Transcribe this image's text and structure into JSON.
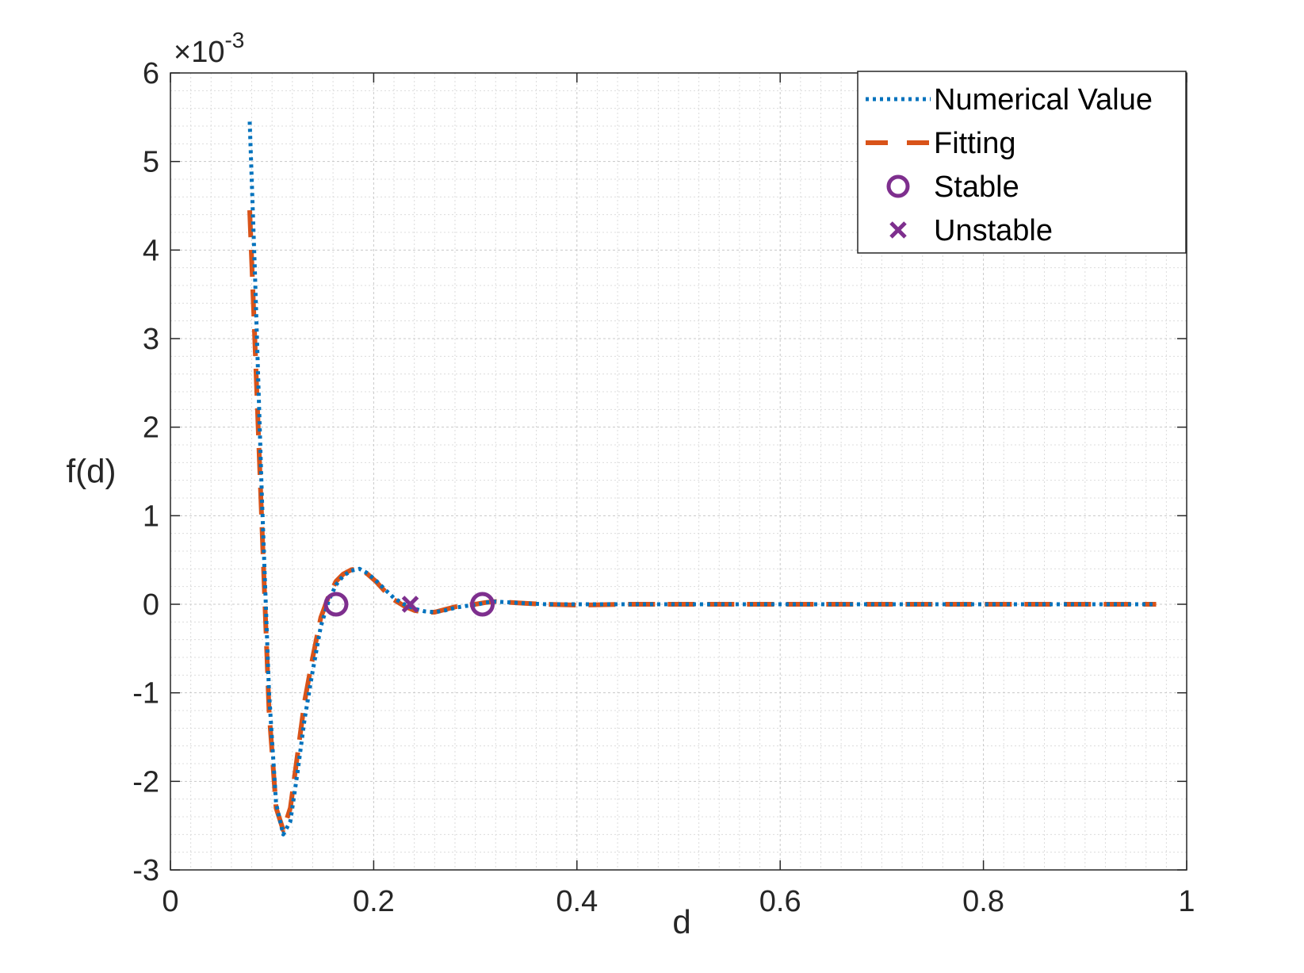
{
  "chart_data": {
    "type": "line",
    "xlabel": "d",
    "ylabel": "f(d)",
    "xlim": [
      0,
      1
    ],
    "ylim": [
      -3,
      6
    ],
    "y_exponent_label": "×10",
    "y_exponent_power": "-3",
    "x_ticks": [
      "0",
      "0.2",
      "0.4",
      "0.6",
      "0.8",
      "1"
    ],
    "y_ticks": [
      "-3",
      "-2",
      "-1",
      "0",
      "1",
      "2",
      "3",
      "4",
      "5",
      "6"
    ],
    "grid": true,
    "minor_grid": true,
    "legend_position": "top-right",
    "colors": {
      "numerical": "#0072BD",
      "fitting": "#D95319",
      "points": "#7E2F8E"
    },
    "series": [
      {
        "name": "Numerical Value",
        "style": "dotted",
        "x": [
          0.078,
          0.083,
          0.09,
          0.097,
          0.104,
          0.111,
          0.118,
          0.125,
          0.132,
          0.14,
          0.148,
          0.156,
          0.163,
          0.17,
          0.178,
          0.186,
          0.194,
          0.202,
          0.21,
          0.22,
          0.23,
          0.24,
          0.25,
          0.26,
          0.27,
          0.28,
          0.29,
          0.3,
          0.31,
          0.32,
          0.335,
          0.35,
          0.37,
          0.4,
          0.45,
          0.5,
          0.6,
          0.7,
          0.8,
          0.9,
          0.97
        ],
        "y": [
          5.45,
          3.8,
          1.2,
          -1.0,
          -2.25,
          -2.6,
          -2.45,
          -1.9,
          -1.3,
          -0.75,
          -0.25,
          0.05,
          0.22,
          0.32,
          0.38,
          0.4,
          0.35,
          0.27,
          0.18,
          0.07,
          0.0,
          -0.05,
          -0.08,
          -0.09,
          -0.07,
          -0.04,
          -0.02,
          -0.01,
          0.02,
          0.03,
          0.02,
          0.01,
          0.0,
          0.0,
          0.0,
          0.0,
          0.0,
          0.0,
          0.0,
          0.0,
          0.0
        ]
      },
      {
        "name": "Fitting",
        "style": "dashed",
        "x": [
          0.078,
          0.083,
          0.09,
          0.097,
          0.104,
          0.111,
          0.118,
          0.125,
          0.132,
          0.14,
          0.148,
          0.156,
          0.163,
          0.17,
          0.178,
          0.186,
          0.194,
          0.202,
          0.21,
          0.22,
          0.23,
          0.24,
          0.25,
          0.26,
          0.27,
          0.28,
          0.29,
          0.3,
          0.31,
          0.32,
          0.335,
          0.35,
          0.37,
          0.4,
          0.45,
          0.5,
          0.6,
          0.7,
          0.8,
          0.9,
          0.97
        ],
        "y": [
          4.45,
          3.0,
          0.9,
          -1.2,
          -2.3,
          -2.55,
          -2.3,
          -1.7,
          -1.1,
          -0.6,
          -0.15,
          0.1,
          0.26,
          0.34,
          0.39,
          0.4,
          0.34,
          0.26,
          0.16,
          0.05,
          -0.02,
          -0.07,
          -0.09,
          -0.09,
          -0.06,
          -0.03,
          -0.01,
          0.0,
          0.02,
          0.03,
          0.02,
          0.01,
          0.0,
          -0.01,
          0.0,
          0.0,
          0.0,
          0.0,
          0.0,
          0.0,
          0.0
        ]
      },
      {
        "name": "Stable",
        "marker": "circle",
        "x": [
          0.163,
          0.307
        ],
        "y": [
          0,
          0
        ]
      },
      {
        "name": "Unstable",
        "marker": "x",
        "x": [
          0.236
        ],
        "y": [
          0
        ]
      }
    ]
  }
}
